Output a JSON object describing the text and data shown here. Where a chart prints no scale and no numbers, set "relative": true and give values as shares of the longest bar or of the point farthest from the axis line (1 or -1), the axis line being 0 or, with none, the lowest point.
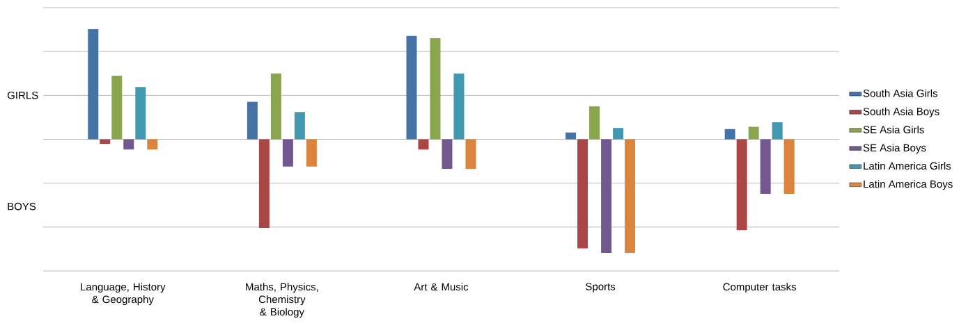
{
  "chart_data": {
    "type": "bar",
    "relative": true,
    "grid": "y",
    "legend": "right",
    "categories": [
      "Language, History & Geography",
      "Maths, Physics, Chemistry & Biology",
      "Art & Music",
      "Sports",
      "Computer tasks"
    ],
    "annotations": [
      "GIRLS",
      "BOYS"
    ],
    "series": [
      {
        "name": "South Asia Girls",
        "color": "#4572a7",
        "values": [
          0.97,
          0.33,
          0.91,
          0.06,
          0.09
        ]
      },
      {
        "name": "South Asia Boys",
        "color": "#aa4643",
        "values": [
          -0.04,
          -0.78,
          -0.09,
          -0.96,
          -0.8
        ]
      },
      {
        "name": "SE Asia Girls",
        "color": "#89a54e",
        "values": [
          0.56,
          0.58,
          0.89,
          0.29,
          0.11
        ]
      },
      {
        "name": "SE Asia Boys",
        "color": "#71588f",
        "values": [
          -0.09,
          -0.24,
          -0.26,
          -1,
          -0.48
        ]
      },
      {
        "name": "Latin America Girls",
        "color": "#4198af",
        "values": [
          0.46,
          0.24,
          0.58,
          0.1,
          0.15
        ]
      },
      {
        "name": "Latin America Boys",
        "color": "#db843d",
        "values": [
          -0.09,
          -0.24,
          -0.26,
          -1,
          -0.48
        ]
      }
    ]
  }
}
